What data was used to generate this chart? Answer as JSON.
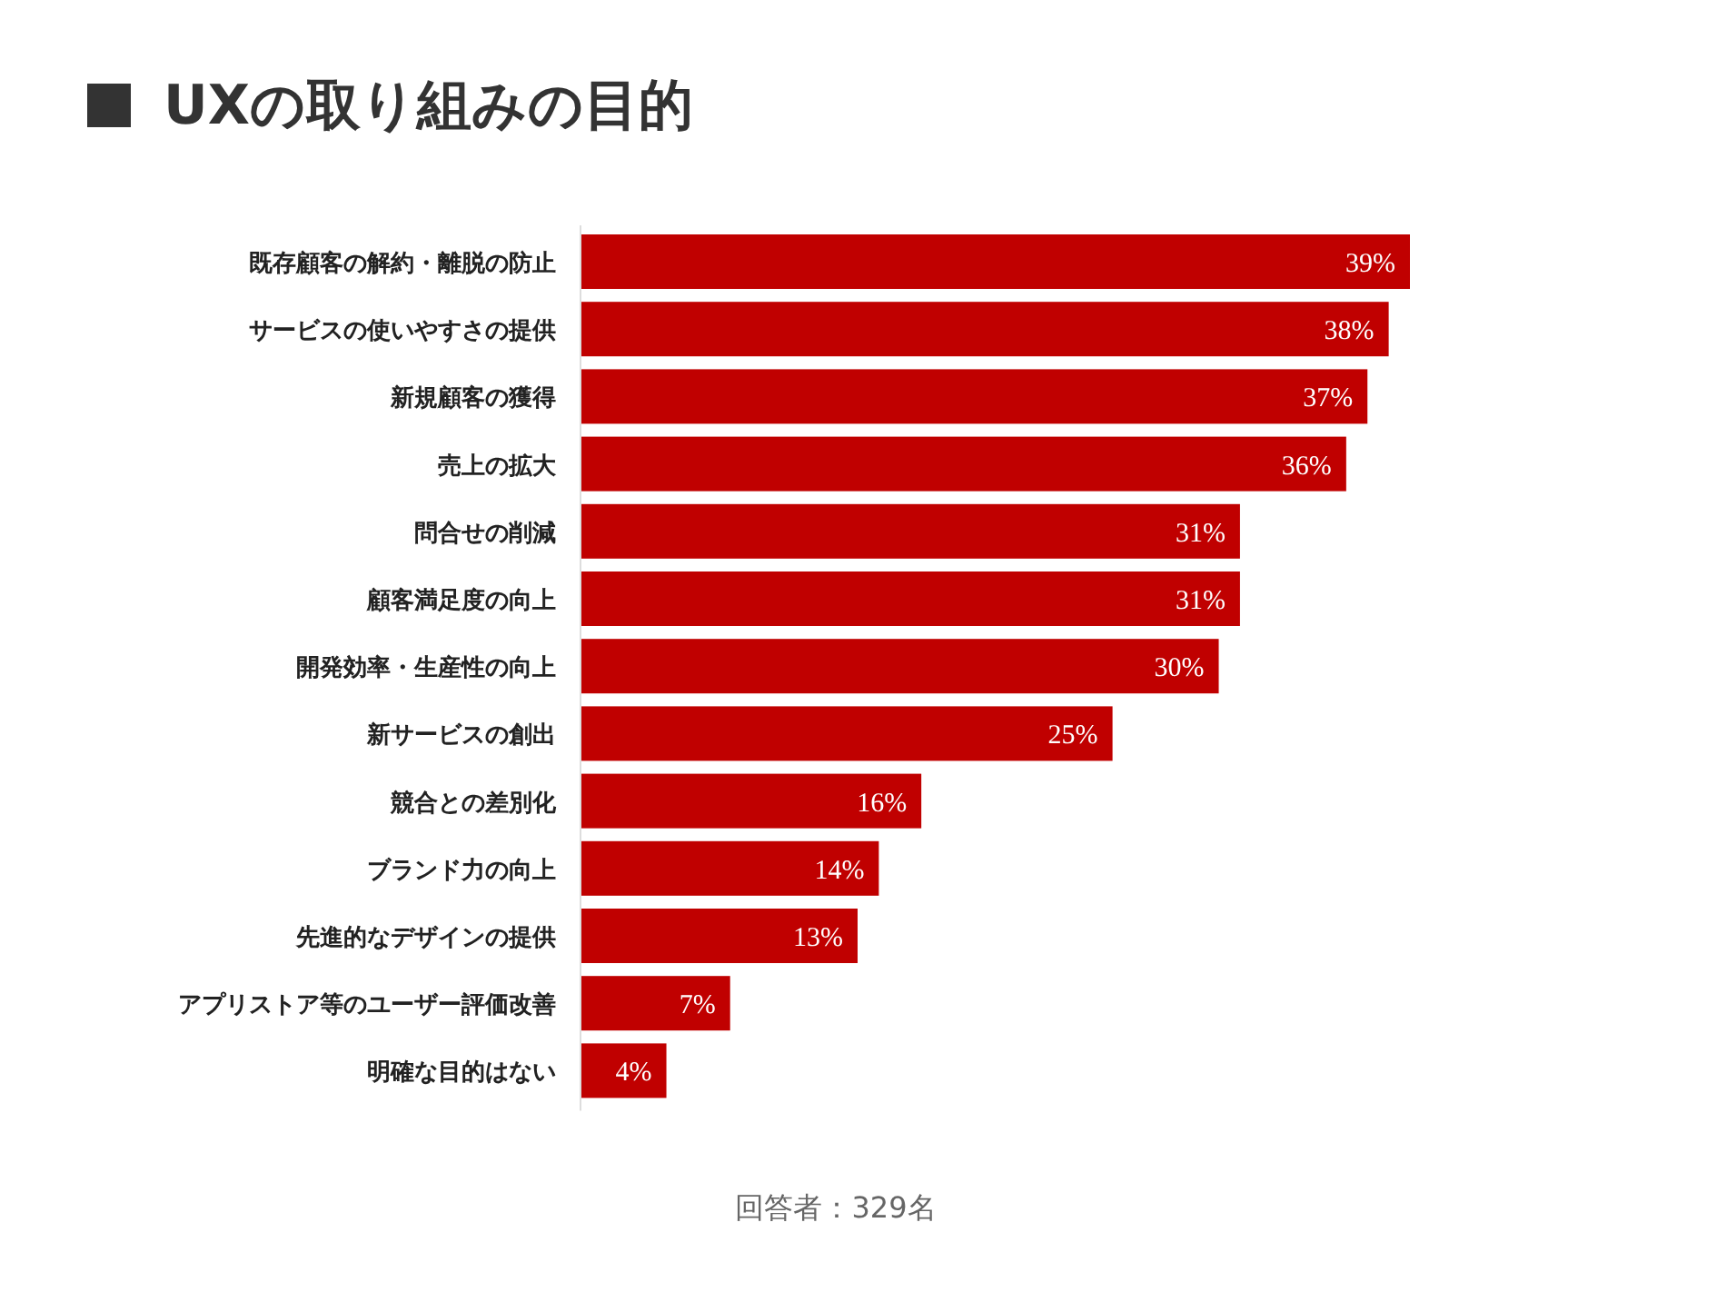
{
  "chart_data": {
    "type": "bar",
    "orientation": "horizontal",
    "title": "UXの取り組みの目的",
    "categories": [
      "既存顧客の解約・離脱の防止",
      "サービスの使いやすさの提供",
      "新規顧客の獲得",
      "売上の拡大",
      "問合せの削減",
      "顧客満足度の向上",
      "開発効率・生産性の向上",
      "新サービスの創出",
      "競合との差別化",
      "ブランド力の向上",
      "先進的なデザインの提供",
      "アプリストア等のユーザー評価改善",
      "明確な目的はない"
    ],
    "values": [
      39,
      38,
      37,
      36,
      31,
      31,
      30,
      25,
      16,
      14,
      13,
      7,
      4
    ],
    "value_labels": [
      "39%",
      "38%",
      "37%",
      "36%",
      "31%",
      "31%",
      "30%",
      "25%",
      "16%",
      "14%",
      "13%",
      "7%",
      "4%"
    ],
    "color": "#c00000",
    "annotations": [
      "回答者：329名"
    ]
  }
}
